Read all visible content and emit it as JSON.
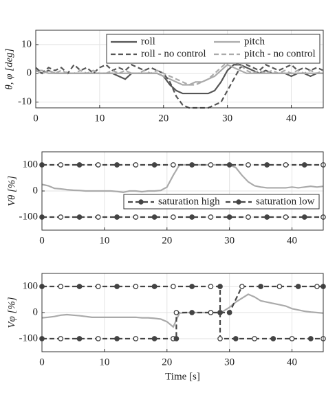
{
  "chart_data": [
    {
      "type": "line",
      "ylabel": "θ, φ [deg]",
      "xlim": [
        0,
        45
      ],
      "ylim": [
        -12,
        15
      ],
      "xticks": [
        0,
        10,
        20,
        30,
        40
      ],
      "yticks": [
        -10,
        0,
        10
      ],
      "grid": true,
      "legend": "upper right",
      "series": [
        {
          "name": "roll",
          "color": "#555555",
          "style": "solid",
          "x": [
            0,
            1,
            2,
            3,
            4,
            5,
            6,
            7,
            8,
            9,
            10,
            11,
            12,
            13,
            14,
            15,
            16,
            17,
            18,
            19,
            20,
            21,
            22,
            23,
            24,
            25,
            26,
            27,
            28,
            29,
            30,
            31,
            32,
            33,
            34,
            35,
            36,
            37,
            38,
            39,
            40,
            41,
            42,
            43,
            44,
            45
          ],
          "values": [
            1,
            0,
            1,
            0,
            0,
            0,
            0,
            0,
            0,
            0,
            0,
            0,
            0,
            -1,
            -2,
            0,
            0,
            0,
            0,
            0,
            -1,
            -4,
            -6,
            -7,
            -7,
            -7,
            -7,
            -7,
            -6,
            -3,
            1,
            3,
            3,
            2,
            1,
            0,
            1,
            0,
            0,
            0,
            -1,
            0,
            0,
            -1,
            0,
            0
          ]
        },
        {
          "name": "pitch",
          "color": "#aaaaaa",
          "style": "solid",
          "x": [
            0,
            1,
            2,
            3,
            4,
            5,
            6,
            7,
            8,
            9,
            10,
            11,
            12,
            13,
            14,
            15,
            16,
            17,
            18,
            19,
            20,
            21,
            22,
            23,
            24,
            25,
            26,
            27,
            28,
            29,
            30,
            31,
            32,
            33,
            34,
            35,
            36,
            37,
            38,
            39,
            40,
            41,
            42,
            43,
            44,
            45
          ],
          "values": [
            1,
            1,
            0,
            0,
            0,
            0,
            0,
            0,
            0,
            0,
            0,
            0,
            0,
            0,
            0,
            0,
            0,
            0,
            0,
            0,
            -1,
            -2,
            -3,
            -4,
            -4,
            -3,
            -3,
            -2,
            -1,
            1,
            3,
            2,
            1,
            0,
            0,
            0,
            0,
            0,
            0,
            0,
            0,
            0,
            0,
            0,
            0,
            0
          ]
        },
        {
          "name": "roll - no control",
          "color": "#555555",
          "style": "dashed",
          "x": [
            0,
            1,
            2,
            3,
            4,
            5,
            6,
            7,
            8,
            9,
            10,
            11,
            12,
            13,
            14,
            15,
            16,
            17,
            18,
            19,
            20,
            21,
            22,
            23,
            24,
            25,
            26,
            27,
            28,
            29,
            30,
            31,
            32,
            33,
            34,
            35,
            36,
            37,
            38,
            39,
            40,
            41,
            42,
            43,
            44,
            45
          ],
          "values": [
            2,
            0,
            2,
            1,
            2,
            0,
            3,
            1,
            2,
            0,
            2,
            3,
            1,
            2,
            1,
            3,
            2,
            1,
            2,
            1,
            0,
            -3,
            -8,
            -11,
            -12,
            -12,
            -12,
            -12,
            -11,
            -10,
            -6,
            -2,
            2,
            3,
            2,
            1,
            3,
            2,
            1,
            2,
            3,
            1,
            2,
            1,
            2,
            1
          ]
        },
        {
          "name": "pitch - no control",
          "color": "#aaaaaa",
          "style": "dashed",
          "x": [
            0,
            1,
            2,
            3,
            4,
            5,
            6,
            7,
            8,
            9,
            10,
            11,
            12,
            13,
            14,
            15,
            16,
            17,
            18,
            19,
            20,
            21,
            22,
            23,
            24,
            25,
            26,
            27,
            28,
            29,
            30,
            31,
            32,
            33,
            34,
            35,
            36,
            37,
            38,
            39,
            40,
            41,
            42,
            43,
            44,
            45
          ],
          "values": [
            1,
            0,
            1,
            0,
            1,
            0,
            0,
            1,
            0,
            1,
            0,
            0,
            1,
            0,
            1,
            0,
            0,
            1,
            0,
            1,
            0,
            -1,
            -2,
            -3,
            -4,
            -4,
            -3,
            -2,
            0,
            2,
            4,
            4,
            3,
            1,
            0,
            1,
            0,
            1,
            0,
            1,
            0,
            1,
            0,
            1,
            0,
            1
          ]
        }
      ]
    },
    {
      "type": "line",
      "ylabel": "Vθ [%]",
      "xlim": [
        0,
        45
      ],
      "ylim": [
        -150,
        150
      ],
      "xticks": [
        0,
        10,
        20,
        30,
        40
      ],
      "yticks": [
        -100,
        0,
        100
      ],
      "grid": true,
      "legend": "lower right",
      "series": [
        {
          "color": "#aaaaaa",
          "style": "solid",
          "x": [
            0,
            1,
            2,
            3,
            4,
            5,
            6,
            7,
            8,
            9,
            10,
            11,
            12,
            13,
            14,
            15,
            16,
            17,
            18,
            19,
            20,
            21,
            22,
            23,
            24,
            25,
            26,
            27,
            28,
            29,
            30,
            31,
            32,
            33,
            34,
            35,
            36,
            37,
            38,
            39,
            40,
            41,
            42,
            43,
            44,
            45
          ],
          "values": [
            25,
            20,
            10,
            8,
            5,
            3,
            2,
            0,
            0,
            0,
            0,
            0,
            -2,
            -5,
            0,
            0,
            -3,
            0,
            0,
            2,
            15,
            60,
            100,
            100,
            100,
            100,
            100,
            100,
            100,
            100,
            100,
            90,
            60,
            35,
            20,
            15,
            12,
            12,
            12,
            12,
            15,
            12,
            15,
            18,
            15,
            18
          ]
        },
        {
          "name": "saturation high",
          "color": "#444444",
          "style": "dashed",
          "marker": "o",
          "x": [
            0,
            3,
            6,
            9,
            12,
            15,
            18,
            21,
            24,
            27,
            30,
            33,
            36,
            39,
            42,
            45
          ],
          "values": [
            100,
            100,
            100,
            100,
            100,
            100,
            100,
            100,
            100,
            100,
            100,
            100,
            100,
            100,
            100,
            100
          ]
        },
        {
          "name": "saturation low",
          "color": "#444444",
          "style": "dashed",
          "marker": "o",
          "x": [
            0,
            3,
            6,
            9,
            12,
            15,
            18,
            21,
            24,
            27,
            30,
            33,
            36,
            39,
            42,
            45
          ],
          "values": [
            -100,
            -100,
            -100,
            -100,
            -100,
            -100,
            -100,
            -100,
            -100,
            -100,
            -100,
            -100,
            -100,
            -100,
            -100,
            -100
          ]
        }
      ]
    },
    {
      "type": "line",
      "ylabel": "Vφ [%]",
      "xlabel": "Time [s]",
      "xlim": [
        0,
        45
      ],
      "ylim": [
        -150,
        150
      ],
      "xticks": [
        0,
        10,
        20,
        30,
        40
      ],
      "yticks": [
        -100,
        0,
        100
      ],
      "grid": true,
      "series": [
        {
          "color": "#aaaaaa",
          "style": "solid",
          "x": [
            0,
            1,
            2,
            3,
            4,
            5,
            6,
            7,
            8,
            9,
            10,
            11,
            12,
            13,
            14,
            15,
            16,
            17,
            18,
            19,
            20,
            21,
            22,
            23,
            24,
            25,
            26,
            27,
            28,
            29,
            30,
            31,
            32,
            33,
            34,
            35,
            36,
            37,
            38,
            39,
            40,
            41,
            42,
            43,
            44,
            45
          ],
          "values": [
            -20,
            -18,
            -15,
            -10,
            -8,
            -10,
            -12,
            -15,
            -18,
            -18,
            -18,
            -18,
            -18,
            -18,
            -18,
            -18,
            -20,
            -20,
            -22,
            -25,
            -35,
            -55,
            -2,
            0,
            0,
            0,
            0,
            0,
            0,
            5,
            20,
            40,
            55,
            70,
            60,
            45,
            40,
            35,
            30,
            25,
            15,
            10,
            5,
            2,
            0,
            -2
          ]
        },
        {
          "color": "#444444",
          "style": "dashed",
          "marker": "o",
          "x": [
            0,
            3,
            6,
            9,
            12,
            15,
            18,
            21,
            24,
            27,
            28.5,
            28.5,
            30,
            32,
            35,
            38,
            41,
            44,
            45
          ],
          "values": [
            100,
            100,
            100,
            100,
            100,
            100,
            100,
            100,
            100,
            100,
            100,
            0,
            0,
            100,
            100,
            100,
            100,
            100,
            100
          ]
        },
        {
          "color": "#444444",
          "style": "dashed",
          "marker": "o",
          "x": [
            0,
            3,
            6,
            9,
            12,
            15,
            18,
            21,
            21.5,
            21.5,
            24,
            27,
            28.5,
            28.5,
            31,
            34,
            37,
            40,
            43,
            45
          ],
          "values": [
            -100,
            -100,
            -100,
            -100,
            -100,
            -100,
            -100,
            -100,
            -100,
            0,
            0,
            0,
            0,
            -100,
            -100,
            -100,
            -100,
            -100,
            -100,
            -100
          ]
        }
      ]
    }
  ]
}
